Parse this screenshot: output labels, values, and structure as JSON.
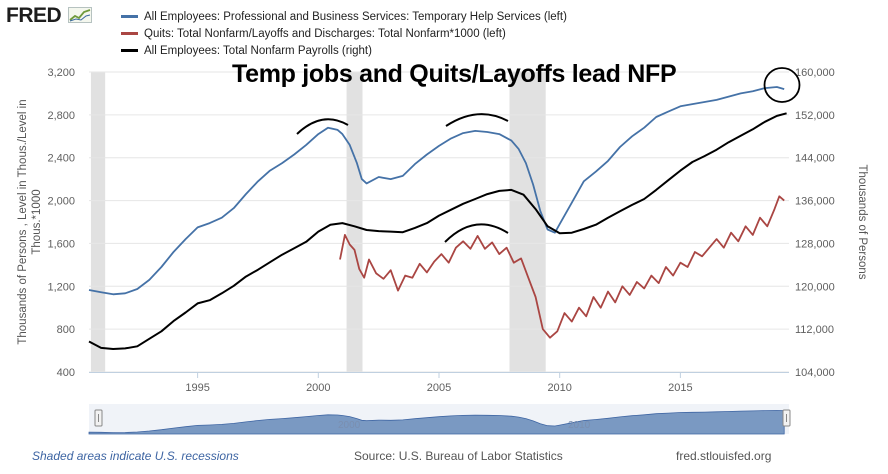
{
  "header": {
    "logo_text": "FRED",
    "logo_icon": "chart-line-icon"
  },
  "legend": [
    {
      "label": "All Employees: Professional and Business Services: Temporary Help Services (left)",
      "color": "#4572a7"
    },
    {
      "label": "Quits: Total Nonfarm/Layoffs and Discharges: Total Nonfarm*1000 (left)",
      "color": "#aa4643"
    },
    {
      "label": "All Employees: Total Nonfarm Payrolls (right)",
      "color": "#000000"
    }
  ],
  "annotation": "Temp jobs and Quits/Layoffs lead NFP",
  "footer": {
    "notes": "Shaded areas indicate U.S. recessions",
    "source": "Source: U.S. Bureau of Labor Statistics",
    "site": "fred.stlouisfed.org"
  },
  "navigator": {
    "labels": [
      "2000",
      "2010"
    ],
    "fill_color": "#4572a7"
  },
  "chart_data": {
    "type": "line",
    "x_range": [
      1990.5,
      2019.5
    ],
    "x_ticks": [
      1995,
      2000,
      2005,
      2010,
      2015
    ],
    "x_tick_labels": [
      "1995",
      "2000",
      "2005",
      "2010",
      "2015"
    ],
    "y_left": {
      "label": "Thousands of Persons , Level in Thous./Level in Thous.*1000",
      "range": [
        400,
        3200
      ],
      "ticks": [
        400,
        800,
        1200,
        1600,
        2000,
        2400,
        2800,
        3200
      ],
      "tick_labels": [
        "400",
        "800",
        "1,200",
        "1,600",
        "2,000",
        "2,400",
        "2,800",
        "3,200"
      ]
    },
    "y_right": {
      "label": "Thousands of Persons",
      "range": [
        104000,
        160000
      ],
      "ticks": [
        104000,
        112000,
        120000,
        128000,
        136000,
        144000,
        152000,
        160000
      ],
      "tick_labels": [
        "104,000",
        "112,000",
        "120,000",
        "128,000",
        "136,000",
        "144,000",
        "152,000",
        "160,000"
      ]
    },
    "recessions": [
      [
        1990.58,
        1991.17
      ],
      [
        2001.17,
        2001.83
      ],
      [
        2007.92,
        2009.42
      ]
    ],
    "series": [
      {
        "name": "All Employees: Professional and Business Services: Temporary Help Services (left)",
        "axis": "left",
        "color": "#4572a7",
        "x": [
          1990.5,
          1991.0,
          1991.5,
          1992.0,
          1992.5,
          1993.0,
          1993.5,
          1994.0,
          1994.5,
          1995.0,
          1995.5,
          1996.0,
          1996.5,
          1997.0,
          1997.5,
          1998.0,
          1998.5,
          1999.0,
          1999.5,
          2000.0,
          2000.4,
          2000.8,
          2001.0,
          2001.3,
          2001.6,
          2001.8,
          2002.0,
          2002.5,
          2003.0,
          2003.5,
          2004.0,
          2004.5,
          2005.0,
          2005.5,
          2006.0,
          2006.5,
          2007.0,
          2007.5,
          2008.0,
          2008.3,
          2008.6,
          2008.9,
          2009.2,
          2009.5,
          2009.8,
          2010.0,
          2010.5,
          2011.0,
          2011.5,
          2012.0,
          2012.5,
          2013.0,
          2013.5,
          2014.0,
          2014.5,
          2015.0,
          2015.5,
          2016.0,
          2016.5,
          2017.0,
          2017.5,
          2018.0,
          2018.5,
          2019.0,
          2019.3
        ],
        "values": [
          1165,
          1145,
          1125,
          1135,
          1175,
          1260,
          1380,
          1520,
          1640,
          1750,
          1790,
          1840,
          1930,
          2060,
          2180,
          2280,
          2350,
          2430,
          2520,
          2620,
          2680,
          2660,
          2620,
          2520,
          2350,
          2200,
          2160,
          2220,
          2200,
          2230,
          2340,
          2430,
          2510,
          2580,
          2630,
          2650,
          2640,
          2620,
          2560,
          2480,
          2350,
          2150,
          1900,
          1730,
          1700,
          1780,
          1980,
          2180,
          2270,
          2370,
          2500,
          2600,
          2680,
          2780,
          2830,
          2880,
          2900,
          2920,
          2940,
          2970,
          3000,
          3020,
          3050,
          3060,
          3040
        ]
      },
      {
        "name": "Quits: Total Nonfarm/Layoffs and Discharges: Total Nonfarm*1000 (left)",
        "axis": "left",
        "color": "#aa4643",
        "x": [
          2000.9,
          2001.1,
          2001.3,
          2001.5,
          2001.7,
          2001.9,
          2002.1,
          2002.4,
          2002.7,
          2003.0,
          2003.3,
          2003.6,
          2003.9,
          2004.2,
          2004.5,
          2004.8,
          2005.1,
          2005.4,
          2005.7,
          2006.0,
          2006.3,
          2006.6,
          2006.9,
          2007.2,
          2007.5,
          2007.8,
          2008.1,
          2008.4,
          2008.7,
          2009.0,
          2009.3,
          2009.6,
          2009.9,
          2010.2,
          2010.5,
          2010.8,
          2011.1,
          2011.4,
          2011.7,
          2012.0,
          2012.3,
          2012.6,
          2012.9,
          2013.2,
          2013.5,
          2013.8,
          2014.1,
          2014.4,
          2014.7,
          2015.0,
          2015.3,
          2015.6,
          2015.9,
          2016.2,
          2016.5,
          2016.8,
          2017.1,
          2017.4,
          2017.7,
          2018.0,
          2018.3,
          2018.6,
          2018.9,
          2019.1,
          2019.3
        ],
        "values": [
          1450,
          1680,
          1590,
          1540,
          1360,
          1280,
          1450,
          1320,
          1270,
          1350,
          1160,
          1300,
          1280,
          1410,
          1330,
          1430,
          1500,
          1420,
          1560,
          1620,
          1550,
          1670,
          1550,
          1610,
          1500,
          1560,
          1420,
          1460,
          1280,
          1100,
          800,
          720,
          780,
          950,
          870,
          1000,
          920,
          1100,
          1000,
          1150,
          1050,
          1200,
          1120,
          1240,
          1180,
          1300,
          1230,
          1380,
          1300,
          1420,
          1380,
          1520,
          1480,
          1560,
          1640,
          1560,
          1700,
          1620,
          1760,
          1680,
          1840,
          1760,
          1920,
          2040,
          2000
        ]
      },
      {
        "name": "All Employees: Total Nonfarm Payrolls (right)",
        "axis": "right",
        "color": "#000000",
        "x": [
          1990.5,
          1991.0,
          1991.5,
          1992.0,
          1992.5,
          1993.0,
          1993.5,
          1994.0,
          1994.5,
          1995.0,
          1995.5,
          1996.0,
          1996.5,
          1997.0,
          1997.5,
          1998.0,
          1998.5,
          1999.0,
          1999.5,
          2000.0,
          2000.5,
          2001.0,
          2001.5,
          2002.0,
          2002.5,
          2003.0,
          2003.5,
          2004.0,
          2004.5,
          2005.0,
          2005.5,
          2006.0,
          2006.5,
          2007.0,
          2007.5,
          2008.0,
          2008.5,
          2009.0,
          2009.5,
          2010.0,
          2010.5,
          2011.0,
          2011.5,
          2012.0,
          2012.5,
          2013.0,
          2013.5,
          2014.0,
          2014.5,
          2015.0,
          2015.5,
          2016.0,
          2016.5,
          2017.0,
          2017.5,
          2018.0,
          2018.5,
          2019.0,
          2019.4
        ],
        "values": [
          109700,
          108500,
          108300,
          108400,
          108800,
          110200,
          111600,
          113500,
          115100,
          116800,
          117400,
          118700,
          120100,
          121800,
          123100,
          124500,
          125900,
          127100,
          128300,
          130200,
          131500,
          131800,
          131200,
          130500,
          130300,
          130200,
          130100,
          130900,
          131800,
          133200,
          134300,
          135400,
          136300,
          137200,
          137800,
          138000,
          137100,
          134400,
          131200,
          129900,
          130000,
          130700,
          131500,
          132800,
          134000,
          135200,
          136300,
          138000,
          139800,
          141600,
          143200,
          144300,
          145500,
          146900,
          148100,
          149300,
          150700,
          151800,
          152300
        ]
      }
    ]
  }
}
